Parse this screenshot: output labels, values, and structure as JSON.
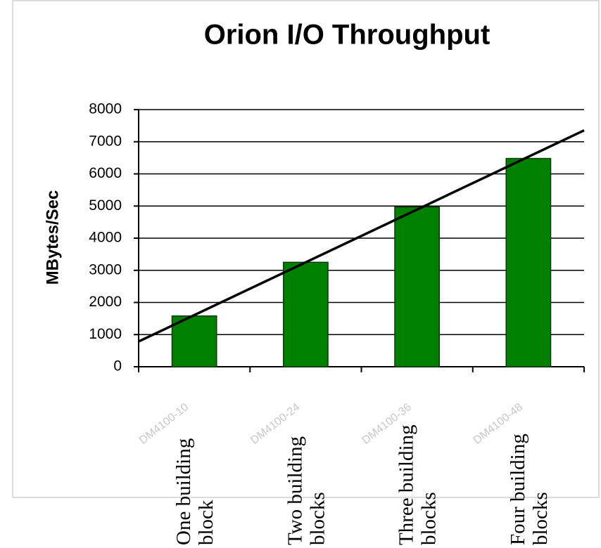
{
  "chart_data": {
    "type": "bar",
    "title": "Orion I/O Throughput",
    "ylabel": "MBytes/Sec",
    "categories": [
      "One building block",
      "Two building blocks",
      "Three building blocks",
      "Four building blocks"
    ],
    "sublabels": [
      "DM4100-10",
      "DM4100-24",
      "DM4100-36",
      "DM4100-48"
    ],
    "values": [
      1580,
      3250,
      4970,
      6480
    ],
    "color": "#008000",
    "ylim": [
      0,
      8000
    ],
    "yticks": [
      0,
      1000,
      2000,
      3000,
      4000,
      5000,
      6000,
      7000,
      8000
    ],
    "grid": true,
    "trendline": "linear"
  }
}
